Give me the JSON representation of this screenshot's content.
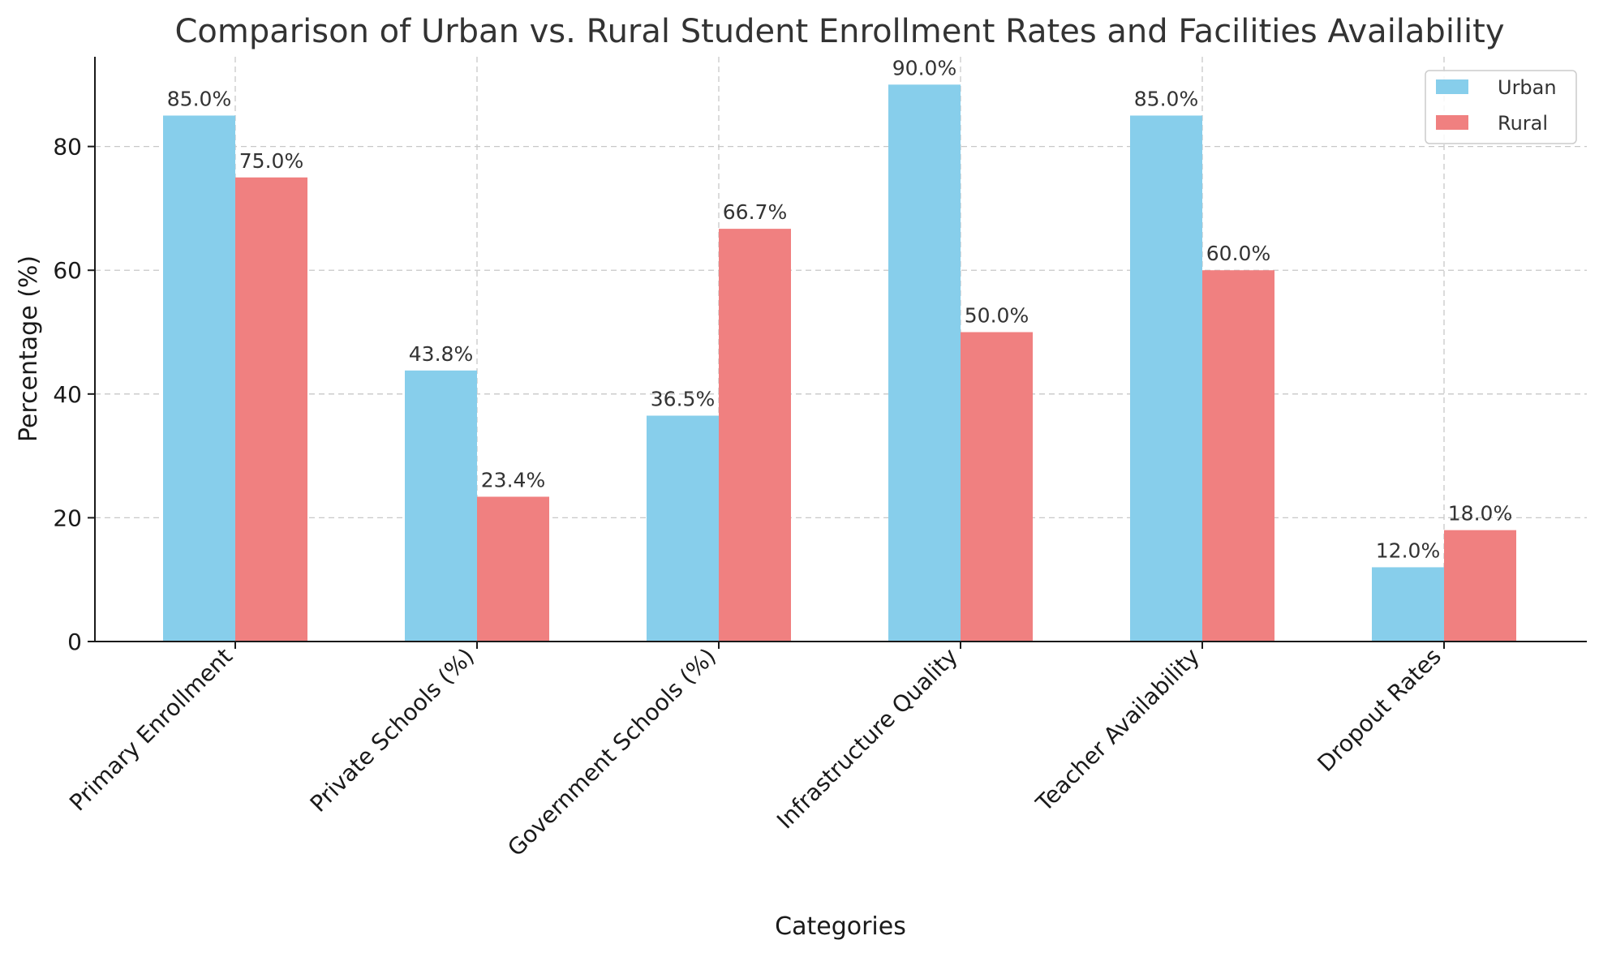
{
  "chart_data": {
    "type": "bar",
    "title": "Comparison of Urban vs. Rural Student Enrollment Rates and Facilities Availability",
    "xlabel": "Categories",
    "ylabel": "Percentage (%)",
    "categories": [
      "Primary Enrollment",
      "Private Schools (%)",
      "Government Schools (%)",
      "Infrastructure Quality",
      "Teacher Availability",
      "Dropout Rates"
    ],
    "series": [
      {
        "name": "Urban",
        "color": "#87ceeb",
        "values": [
          85.0,
          43.8,
          36.5,
          90.0,
          85.0,
          12.0
        ],
        "labels": [
          "85.0%",
          "43.8%",
          "36.5%",
          "90.0%",
          "85.0%",
          "12.0%"
        ]
      },
      {
        "name": "Rural",
        "color": "#f08080",
        "values": [
          75.0,
          23.4,
          66.7,
          50.0,
          60.0,
          18.0
        ],
        "labels": [
          "75.0%",
          "23.4%",
          "66.7%",
          "50.0%",
          "60.0%",
          "18.0%"
        ]
      }
    ],
    "ylim": [
      0,
      94.5
    ],
    "yticks": [
      0,
      20,
      40,
      60,
      80
    ],
    "ytick_labels": [
      "0",
      "20",
      "40",
      "60",
      "80"
    ],
    "grid": true,
    "legend_position": "top-right"
  }
}
